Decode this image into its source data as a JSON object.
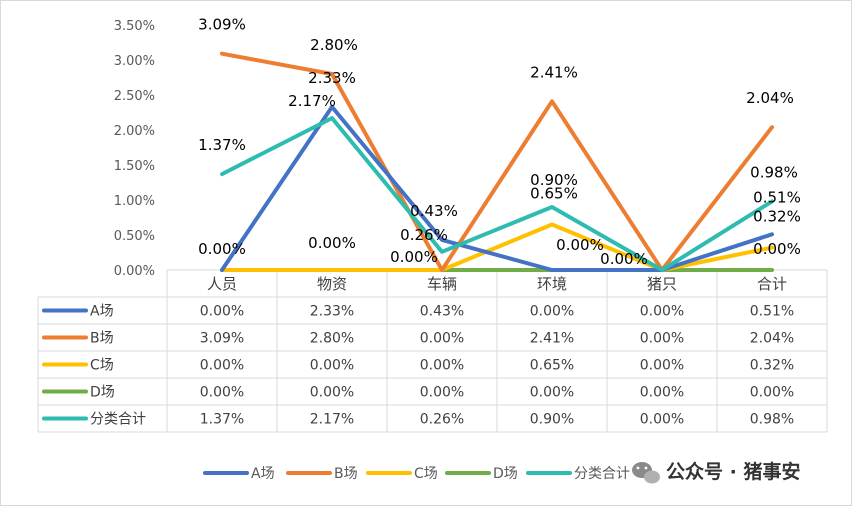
{
  "chart_data": {
    "type": "line",
    "categories": [
      "人员",
      "物资",
      "车辆",
      "环境",
      "猪只",
      "合计"
    ],
    "y_ticks": [
      "0.00%",
      "0.50%",
      "1.00%",
      "1.50%",
      "2.00%",
      "2.50%",
      "3.00%",
      "3.50%"
    ],
    "ylim": [
      0,
      3.5
    ],
    "unit": "%",
    "grid": false,
    "data_table": true,
    "legend_position": "bottom",
    "series": [
      {
        "name": "A场",
        "color": "#4472C4",
        "values": [
          0.0,
          2.33,
          0.43,
          0.0,
          0.0,
          0.51
        ],
        "labels": [
          "0.00%",
          "2.33%",
          "0.43%",
          "0.00%",
          "0.00%",
          "0.51%"
        ]
      },
      {
        "name": "B场",
        "color": "#ED7D31",
        "values": [
          3.09,
          2.8,
          0.0,
          2.41,
          0.0,
          2.04
        ],
        "labels": [
          "3.09%",
          "2.80%",
          "0.00%",
          "2.41%",
          "0.00%",
          "2.04%"
        ]
      },
      {
        "name": "C场",
        "color": "#FFC000",
        "values": [
          0.0,
          0.0,
          0.0,
          0.65,
          0.0,
          0.32
        ],
        "labels": [
          "0.00%",
          "0.00%",
          "0.00%",
          "0.65%",
          "0.00%",
          "0.32%"
        ]
      },
      {
        "name": "D场",
        "color": "#70AD47",
        "values": [
          0.0,
          0.0,
          0.0,
          0.0,
          0.0,
          0.0
        ],
        "labels": [
          "0.00%",
          "0.00%",
          "0.00%",
          "0.00%",
          "0.00%",
          "0.00%"
        ]
      },
      {
        "name": "分类合计",
        "color": "#2EBCB0",
        "values": [
          1.37,
          2.17,
          0.26,
          0.9,
          0.0,
          0.98
        ],
        "labels": [
          "1.37%",
          "2.17%",
          "0.26%",
          "0.90%",
          "0.00%",
          "0.98%"
        ]
      }
    ],
    "point_labels": [
      {
        "text": "3.09%",
        "series": 1,
        "point": 0
      },
      {
        "text": "1.37%",
        "series": 4,
        "point": 0
      },
      {
        "text": "0.00%",
        "series": 0,
        "point": 0
      },
      {
        "text": "2.80%",
        "series": 1,
        "point": 1
      },
      {
        "text": "2.33%",
        "series": 0,
        "point": 1
      },
      {
        "text": "2.17%",
        "series": 4,
        "point": 1
      },
      {
        "text": "0.00%",
        "series": 2,
        "point": 1
      },
      {
        "text": "0.43%",
        "series": 0,
        "point": 2
      },
      {
        "text": "0.26%",
        "series": 4,
        "point": 2
      },
      {
        "text": "0.00%",
        "series": 1,
        "point": 2
      },
      {
        "text": "2.41%",
        "series": 1,
        "point": 3
      },
      {
        "text": "0.90%",
        "series": 4,
        "point": 3
      },
      {
        "text": "0.65%",
        "series": 2,
        "point": 3
      },
      {
        "text": "0.00%",
        "series": 0,
        "point": 3
      },
      {
        "text": "0.00%",
        "series": 0,
        "point": 4
      },
      {
        "text": "2.04%",
        "series": 1,
        "point": 5
      },
      {
        "text": "0.98%",
        "series": 4,
        "point": 5
      },
      {
        "text": "0.51%",
        "series": 0,
        "point": 5
      },
      {
        "text": "0.32%",
        "series": 2,
        "point": 5
      },
      {
        "text": "0.00%",
        "series": 3,
        "point": 5
      }
    ]
  },
  "watermark": {
    "text": "公众号 · 猪事安",
    "icon": "wechat-icon"
  }
}
